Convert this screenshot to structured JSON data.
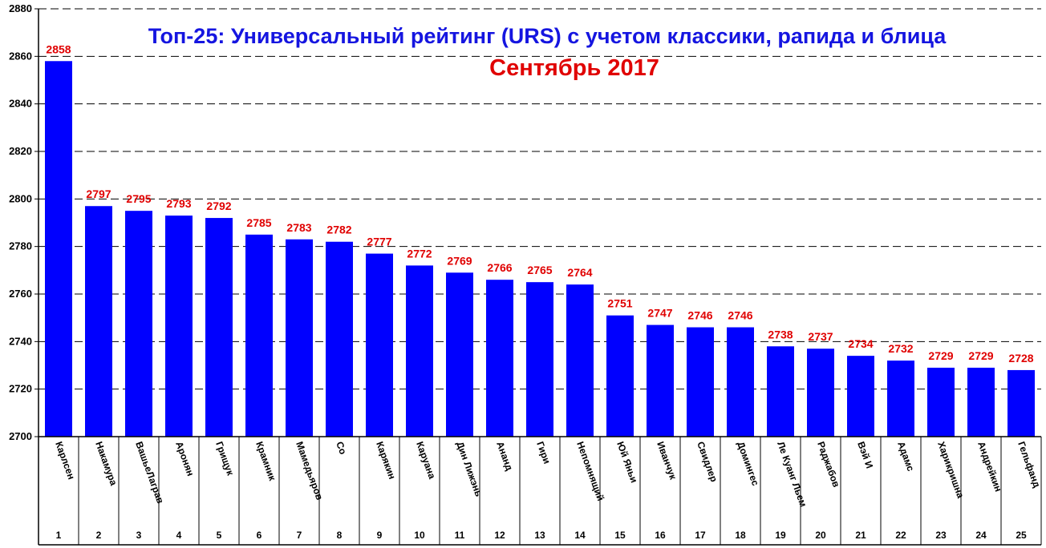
{
  "chart_data": {
    "type": "bar",
    "title": "Топ-25: Универсальный рейтинг (URS) с учетом классики, рапида и блица",
    "subtitle": "Сентябрь 2017",
    "ylim": [
      2700,
      2880
    ],
    "yticks": [
      2700,
      2720,
      2740,
      2760,
      2780,
      2800,
      2820,
      2840,
      2860,
      2880
    ],
    "grid": true,
    "bar_color": "#0000ff",
    "label_color": "#e00000",
    "categories": [
      "Карлсен",
      "Накамура",
      "ВашьеЛаграв",
      "Аронян",
      "Грищук",
      "Крамник",
      "Мамедьяров",
      "Со",
      "Карякин",
      "Каруана",
      "Дин Лижэнь",
      "Ананд",
      "Гири",
      "Непомнящий",
      "Юй Яньи",
      "Иванчук",
      "Свидлер",
      "Домингес",
      "Ле Куанг Льем",
      "Раджабов",
      "Вэй И",
      "Адамс",
      "Харикришна",
      "Андрейкин",
      "Гельфанд"
    ],
    "ranks": [
      "1",
      "2",
      "3",
      "4",
      "5",
      "6",
      "7",
      "8",
      "9",
      "10",
      "11",
      "12",
      "13",
      "14",
      "15",
      "16",
      "17",
      "18",
      "19",
      "20",
      "21",
      "22",
      "23",
      "24",
      "25"
    ],
    "values": [
      2858,
      2797,
      2795,
      2793,
      2792,
      2785,
      2783,
      2782,
      2777,
      2772,
      2769,
      2766,
      2765,
      2764,
      2751,
      2747,
      2746,
      2746,
      2738,
      2737,
      2734,
      2732,
      2729,
      2729,
      2728
    ]
  }
}
